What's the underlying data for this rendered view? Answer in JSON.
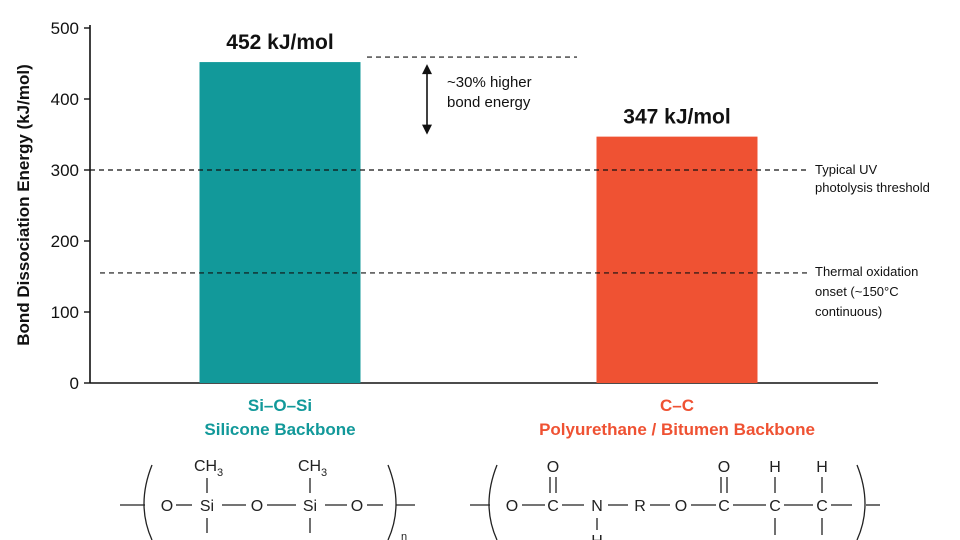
{
  "chart_data": {
    "type": "bar",
    "ylabel": "Bond Dissociation Energy (kJ/mol)",
    "ylim": [
      0,
      500
    ],
    "yticks": [
      0,
      100,
      200,
      300,
      400,
      500
    ],
    "categories": [
      "Si–O–Si",
      "C–C"
    ],
    "category_subtitles": [
      "Silicone Backbone",
      "Polyurethane / Bitumen Backbone"
    ],
    "values": [
      452,
      347
    ],
    "data_labels": [
      "452 kJ/mol",
      "347 kJ/mol"
    ],
    "colors": [
      "#12999a",
      "#ef5233"
    ],
    "reference_lines": [
      {
        "value": 300,
        "label_lines": [
          "Typical UV",
          "photolysis threshold"
        ]
      },
      {
        "value": 155,
        "label_lines": [
          "Thermal oxidation",
          "onset (~150°C",
          "continuous)"
        ]
      }
    ],
    "comparison_annotation": {
      "lines": [
        "~30% higher",
        "bond energy"
      ]
    },
    "grid": false
  },
  "structures": {
    "silicone": {
      "atoms": [
        "O",
        "Si",
        "O",
        "Si",
        "O"
      ],
      "substituent": "CH",
      "substituent_sub": "3",
      "repeat_sub": "n"
    },
    "polyurethane": {
      "atoms": [
        "O",
        "C",
        "N",
        "R",
        "O",
        "C",
        "C",
        "C"
      ],
      "carbonyl_o": "O",
      "hydrogen": "H"
    }
  }
}
